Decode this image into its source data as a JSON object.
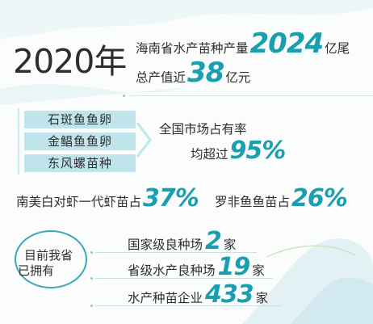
{
  "year": "2020年",
  "headline": {
    "line1_prefix": "海南省水产苗种产量",
    "line1_value": "2024",
    "line1_unit": "亿尾",
    "line2_prefix": "总产值近",
    "line2_value": "38",
    "line2_unit": "亿元"
  },
  "species_chips": [
    "石斑鱼鱼卵",
    "金鲳鱼鱼卵",
    "东风螺苗种"
  ],
  "market_share": {
    "line1": "全国市场占有率",
    "line2_prefix": "均超过",
    "line2_value": "95%"
  },
  "shrimp": {
    "prefix": "南美白对虾一代虾苗占",
    "value": "37%"
  },
  "tilapia": {
    "prefix": "罗非鱼鱼苗占",
    "value": "26%"
  },
  "owned_label": {
    "line1": "目前我省",
    "line2": "已拥有"
  },
  "farms": [
    {
      "prefix": "国家级良种场",
      "value": "2",
      "unit": "家"
    },
    {
      "prefix": "省级水产良种场",
      "value": "19",
      "unit": "家"
    },
    {
      "prefix": "水产种苗企业",
      "value": "433",
      "unit": "家"
    }
  ],
  "colors": {
    "accent": "#1a9fb0",
    "chip_bg": "#bfe4ec",
    "text": "#2d2d2d",
    "wave": "#e7f4f6"
  }
}
